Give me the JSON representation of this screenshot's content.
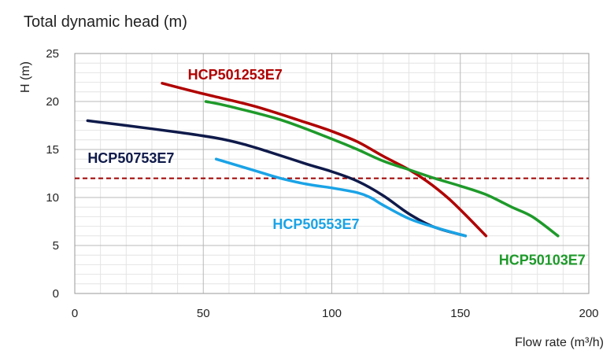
{
  "chart_data": {
    "type": "line",
    "title": "Total dynamic head (m)",
    "xlabel": "Flow rate (m³/h)",
    "ylabel": "H (m)",
    "xlim": [
      0,
      200
    ],
    "ylim": [
      0,
      25
    ],
    "xticks": [
      0,
      50,
      100,
      150,
      200
    ],
    "yticks": [
      0,
      5,
      10,
      15,
      20,
      25
    ],
    "grid": true,
    "reference_line": {
      "y": 12,
      "style": "dashed",
      "color": "#a00000"
    },
    "series": [
      {
        "name": "HCP501253E7",
        "color": "#b00000",
        "x": [
          34,
          50,
          70,
          90,
          100,
          110,
          120,
          130,
          137,
          145,
          152,
          160
        ],
        "y": [
          21.9,
          20.8,
          19.5,
          17.8,
          16.9,
          15.8,
          14.3,
          12.9,
          11.7,
          10.0,
          8.2,
          6.0
        ]
      },
      {
        "name": "HCP50103E7",
        "color": "#1e9a2a",
        "x": [
          51,
          60,
          80,
          100,
          110,
          120,
          130,
          140,
          150,
          160,
          170,
          178,
          188
        ],
        "y": [
          20.0,
          19.5,
          18.1,
          16.1,
          15.0,
          13.8,
          12.9,
          12.0,
          11.2,
          10.3,
          9.0,
          8.0,
          6.0
        ]
      },
      {
        "name": "HCP50753E7",
        "color": "#0f1a4a",
        "x": [
          5,
          20,
          40,
          55,
          65,
          75,
          90,
          100,
          110,
          120,
          130,
          140,
          152
        ],
        "y": [
          18.0,
          17.5,
          16.8,
          16.2,
          15.6,
          14.8,
          13.5,
          12.7,
          11.7,
          10.2,
          8.3,
          6.9,
          6.0
        ]
      },
      {
        "name": "HCP50553E7",
        "color": "#1aa3e6",
        "x": [
          55,
          70,
          80,
          90,
          100,
          110,
          115,
          120,
          130,
          140,
          152
        ],
        "y": [
          14.0,
          12.8,
          12.0,
          11.4,
          11.0,
          10.5,
          10.0,
          9.2,
          7.8,
          6.9,
          6.0
        ]
      }
    ],
    "series_labels": [
      {
        "text": "HCP501253E7",
        "x": 44,
        "y": 22.8
      },
      {
        "text": "HCP50753E7",
        "x": 5,
        "y": 14.1
      },
      {
        "text": "HCP50553E7",
        "x": 77,
        "y": 7.2
      },
      {
        "text": "HCP50103E7",
        "x": 165,
        "y": 3.5
      }
    ]
  }
}
